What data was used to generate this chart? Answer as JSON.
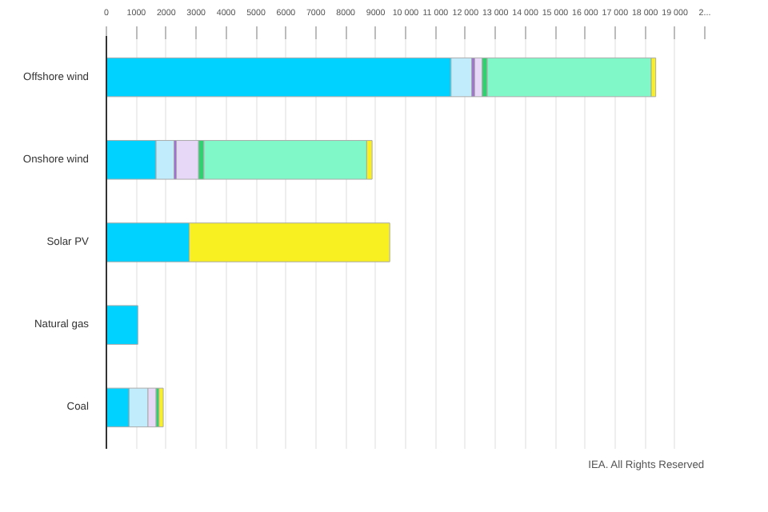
{
  "chart_data": {
    "type": "bar",
    "orientation": "horizontal",
    "stacked": true,
    "categories": [
      "Offshore wind",
      "Onshore wind",
      "Solar PV",
      "Natural gas",
      "Coal"
    ],
    "series": [
      {
        "color": "#00d2ff",
        "values": [
          11520,
          1660,
          2770,
          1050,
          760
        ]
      },
      {
        "color": "#c0ecfc",
        "values": [
          690,
          600,
          null,
          null,
          630
        ]
      },
      {
        "color": "#a070d0",
        "values": [
          100,
          80,
          null,
          null,
          null
        ]
      },
      {
        "color": "#e8d8f8",
        "values": [
          250,
          740,
          null,
          null,
          270
        ]
      },
      {
        "color": "#30d070",
        "values": [
          170,
          180,
          null,
          null,
          100
        ]
      },
      {
        "color": "#80f8c8",
        "values": [
          5480,
          5440,
          null,
          null,
          null
        ]
      },
      {
        "color": "#f8f020",
        "values": [
          150,
          180,
          6700,
          null,
          140
        ]
      }
    ],
    "xlim": [
      0,
      20000
    ],
    "xticks": [
      0,
      1000,
      2000,
      3000,
      4000,
      5000,
      6000,
      7000,
      8000,
      9000,
      {
        "value": 10000,
        "label": "10 000"
      },
      {
        "value": 11000,
        "label": "11 000"
      },
      {
        "value": 12000,
        "label": "12 000"
      },
      {
        "value": 13000,
        "label": "13 000"
      },
      {
        "value": 14000,
        "label": "14 000"
      },
      {
        "value": 15000,
        "label": "15 000"
      },
      {
        "value": 16000,
        "label": "16 000"
      },
      {
        "value": 17000,
        "label": "17 000"
      },
      {
        "value": 18000,
        "label": "18 000"
      },
      {
        "value": 19000,
        "label": "19 000"
      },
      {
        "value": 20000,
        "label": "2..."
      }
    ],
    "grid": "x",
    "annotations": [
      "IEA. All Rights Reserved"
    ]
  }
}
